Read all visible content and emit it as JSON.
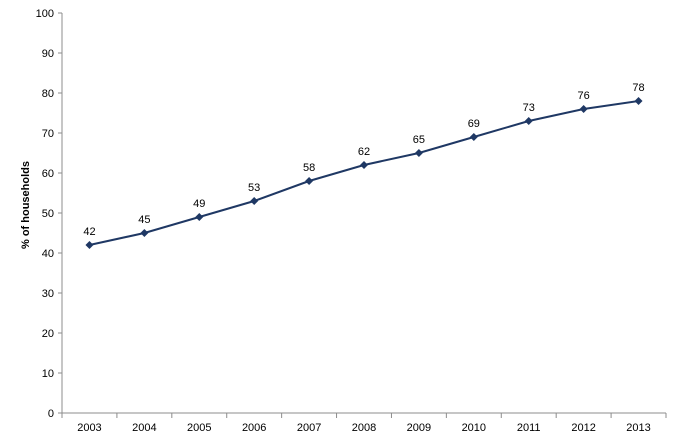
{
  "chart_data": {
    "type": "line",
    "title": "",
    "xlabel": "",
    "ylabel": "% of households",
    "categories": [
      "2003",
      "2004",
      "2005",
      "2006",
      "2007",
      "2008",
      "2009",
      "2010",
      "2011",
      "2012",
      "2013"
    ],
    "series": [
      {
        "values": [
          42,
          45,
          49,
          53,
          58,
          62,
          65,
          69,
          73,
          76,
          78
        ]
      }
    ],
    "ylim": [
      0,
      100
    ],
    "yticks": [
      0,
      10,
      20,
      30,
      40,
      50,
      60,
      70,
      80,
      90,
      100
    ],
    "grid": false,
    "legend": "none",
    "line_color": "#1f3864",
    "marker": "diamond",
    "data_labels": true
  }
}
